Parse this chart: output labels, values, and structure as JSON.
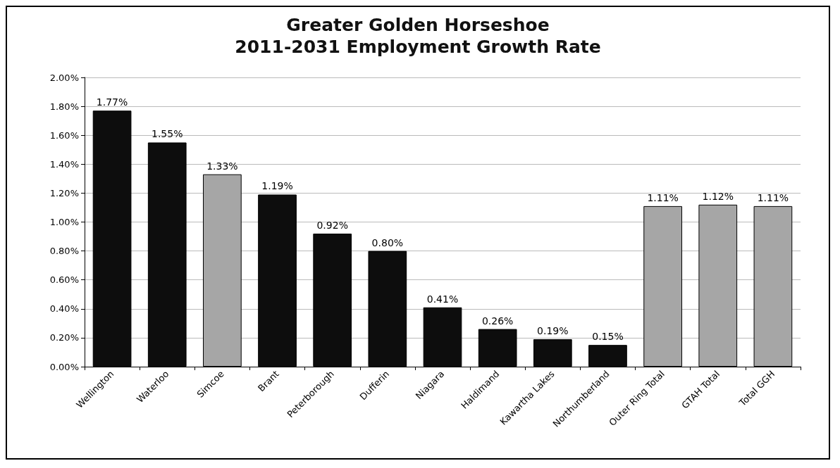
{
  "chart_data": {
    "type": "bar",
    "title": "Greater Golden Horseshoe",
    "subtitle": "2011-2031 Employment Growth Rate",
    "categories": [
      "Wellington",
      "Waterloo",
      "Simcoe",
      "Brant",
      "Peterborough",
      "Dufferin",
      "Niagara",
      "Haldimand",
      "Kawartha Lakes",
      "Northumberland",
      "Outer Ring Total",
      "GTAH Total",
      "Total GGH"
    ],
    "values": [
      1.77,
      1.55,
      1.33,
      1.19,
      0.92,
      0.8,
      0.41,
      0.26,
      0.19,
      0.15,
      1.11,
      1.12,
      1.11
    ],
    "colors": [
      "#0d0d0d",
      "#0d0d0d",
      "#a6a6a6",
      "#0d0d0d",
      "#0d0d0d",
      "#0d0d0d",
      "#0d0d0d",
      "#0d0d0d",
      "#0d0d0d",
      "#0d0d0d",
      "#a6a6a6",
      "#a6a6a6",
      "#a6a6a6"
    ],
    "value_labels": [
      "1.77%",
      "1.55%",
      "1.33%",
      "1.19%",
      "0.92%",
      "0.80%",
      "0.41%",
      "0.26%",
      "0.19%",
      "0.15%",
      "1.11%",
      "1.12%",
      "1.11%"
    ],
    "ylim": [
      0,
      2
    ],
    "yticks": [
      {
        "value": 0,
        "label": "0.00%"
      },
      {
        "value": 0.2,
        "label": "0.20%"
      },
      {
        "value": 0.4,
        "label": "0.40%"
      },
      {
        "value": 0.6,
        "label": "0.60%"
      },
      {
        "value": 0.8,
        "label": "0.80%"
      },
      {
        "value": 1,
        "label": "1.00%"
      },
      {
        "value": 1.2,
        "label": "1.20%"
      },
      {
        "value": 1.4,
        "label": "1.40%"
      },
      {
        "value": 1.6,
        "label": "1.60%"
      },
      {
        "value": 1.8,
        "label": "1.80%"
      },
      {
        "value": 2,
        "label": "2.00%"
      }
    ],
    "grid": "y"
  }
}
